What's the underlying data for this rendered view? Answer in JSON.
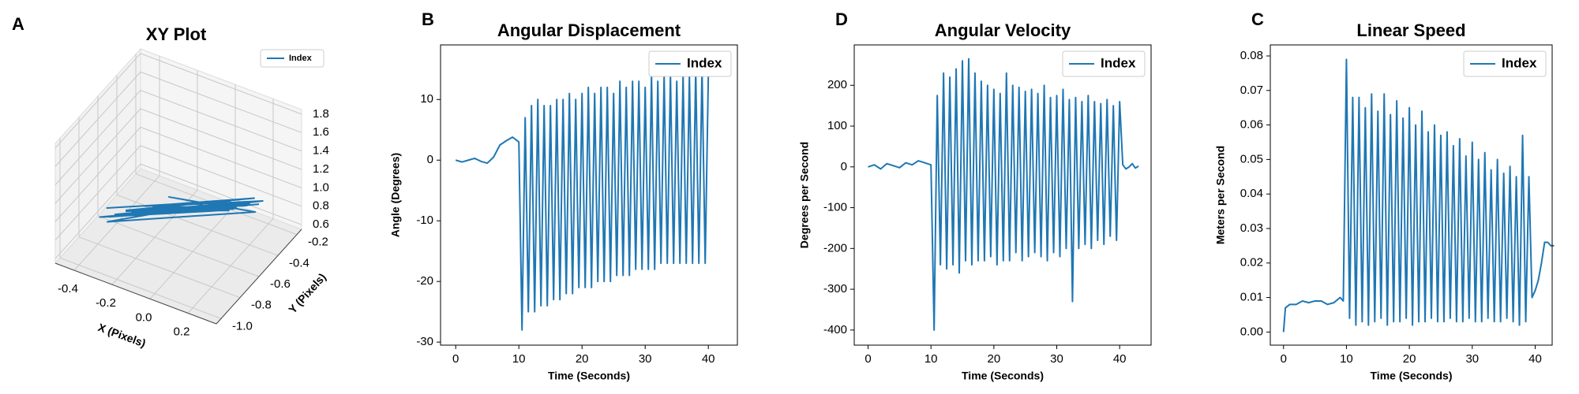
{
  "chart_data": [
    {
      "type": "line3d",
      "panel_label": "A",
      "title": "XY Plot",
      "xlabel": "X (Pixels)",
      "ylabel": "Y (Pixels)",
      "xlim": [
        -0.5,
        0.35
      ],
      "ylim": [
        -1.05,
        -0.15
      ],
      "zlim": [
        0.55,
        1.85
      ],
      "xticks": [
        -0.4,
        -0.2,
        {
          "value": 0,
          "label": "0.0"
        },
        0.2
      ],
      "yticks": [
        {
          "value": -1,
          "label": "-1.0"
        },
        -0.8,
        -0.6,
        -0.4,
        -0.2
      ],
      "zticks": [
        0.6,
        0.8,
        {
          "value": 1,
          "label": "1.0"
        },
        1.2,
        1.4,
        1.6,
        1.8
      ],
      "legend": "upper right",
      "series": [
        {
          "name": "Index",
          "color": "#1f77b4",
          "x": [
            -0.38,
            0.1,
            -0.25,
            0.2,
            -0.3,
            0.05,
            -0.15,
            0.22,
            -0.35,
            0.0,
            -0.1,
            0.18,
            -0.28,
            0.12,
            -0.2,
            0.25,
            -0.05,
            -0.32,
            0.15,
            -0.18,
            0.08,
            -0.4,
            0.2,
            -0.12,
            0.02,
            -0.26,
            0.16,
            -0.08,
            0.23,
            -0.34,
            0.06,
            -0.22,
            0.14,
            -0.02,
            -0.3,
            0.19,
            -0.16,
            0.1,
            -0.36,
            0.24
          ],
          "y": [
            -0.75,
            -0.4,
            -0.6,
            -0.35,
            -0.7,
            -0.45,
            -0.55,
            -0.38,
            -0.8,
            -0.5,
            -0.58,
            -0.42,
            -0.68,
            -0.46,
            -0.62,
            -0.36,
            -0.52,
            -0.72,
            -0.44,
            -0.6,
            -0.48,
            -0.78,
            -0.4,
            -0.56,
            -0.5,
            -0.66,
            -0.42,
            -0.54,
            -0.37,
            -0.74,
            -0.47,
            -0.64,
            -0.45,
            -0.53,
            -0.7,
            -0.41,
            -0.59,
            -0.46,
            -0.76,
            -0.38
          ],
          "z": [
            0.9,
            0.95,
            0.85,
            1.0,
            0.88,
            0.92,
            0.97,
            0.9,
            0.83,
            0.94,
            0.89,
            0.99,
            0.86,
            0.93,
            0.91,
            1.02,
            0.88,
            0.84,
            0.96,
            0.9,
            0.92,
            0.82,
            1.0,
            0.87,
            0.94,
            0.86,
            0.97,
            0.9,
            1.01,
            0.85,
            0.93,
            0.89,
            0.95,
            0.91,
            0.87,
            0.98,
            0.88,
            0.94,
            0.83,
            1.0
          ]
        }
      ]
    },
    {
      "type": "line",
      "panel_label": "B",
      "title": "Angular Displacement",
      "xlabel": "Time (Seconds)",
      "ylabel": "Angle (Degrees)",
      "xlim": [
        -2.4,
        44.6
      ],
      "ylim": [
        -30.5,
        19
      ],
      "xticks": [
        0,
        10,
        20,
        30,
        40
      ],
      "yticks": [
        -30,
        -20,
        -10,
        0,
        10
      ],
      "legend": "upper right",
      "x": [
        0,
        1,
        2,
        3,
        4,
        5,
        6,
        7,
        8,
        9,
        10,
        10.5,
        11,
        11.5,
        12,
        12.5,
        13,
        13.5,
        14,
        14.5,
        15,
        15.5,
        16,
        16.5,
        17,
        17.5,
        18,
        18.5,
        19,
        19.5,
        20,
        20.5,
        21,
        21.5,
        22,
        22.5,
        23,
        23.5,
        24,
        24.5,
        25,
        25.5,
        26,
        26.5,
        27,
        27.5,
        28,
        28.5,
        29,
        29.5,
        30,
        30.5,
        31,
        31.5,
        32,
        32.5,
        33,
        33.5,
        34,
        34.5,
        35,
        35.5,
        36,
        36.5,
        37,
        37.5,
        38,
        38.5,
        39,
        39.5,
        40
      ],
      "series": [
        {
          "name": "Index",
          "color": "#1f77b4",
          "values": [
            0,
            -0.3,
            0,
            0.3,
            -0.2,
            -0.5,
            0.5,
            2.5,
            3.2,
            3.8,
            3.0,
            -28,
            7,
            -25,
            9,
            -25,
            10,
            -24,
            9,
            -24,
            9,
            -23,
            10,
            -23,
            10,
            -22,
            11,
            -22,
            10,
            -21,
            11,
            -21,
            12,
            -21,
            11,
            -20,
            12,
            -20,
            12,
            -20,
            11,
            -19,
            13,
            -19,
            12,
            -19,
            13,
            -18,
            13,
            -18,
            12,
            -18,
            14,
            -18,
            13,
            -17,
            14,
            -17,
            14,
            -17,
            13,
            -17,
            14,
            -17,
            14,
            -17,
            15,
            -17,
            15,
            -17,
            14
          ]
        }
      ]
    },
    {
      "type": "line",
      "panel_label": "D",
      "title": "Angular Velocity",
      "xlabel": "Time (Seconds)",
      "ylabel": "Degrees per Second",
      "xlim": [
        -2.2,
        45
      ],
      "ylim": [
        -437,
        299
      ],
      "xticks": [
        0,
        10,
        20,
        30,
        40
      ],
      "yticks": [
        -400,
        -300,
        -200,
        -100,
        0,
        100,
        200
      ],
      "legend": "upper right",
      "x": [
        0,
        1,
        2,
        3,
        4,
        5,
        6,
        7,
        8,
        9,
        10,
        10.5,
        11,
        11.5,
        12,
        12.5,
        13,
        13.5,
        14,
        14.5,
        15,
        15.5,
        16,
        16.5,
        17,
        17.5,
        18,
        18.5,
        19,
        19.5,
        20,
        20.5,
        21,
        21.5,
        22,
        22.5,
        23,
        23.5,
        24,
        24.5,
        25,
        25.5,
        26,
        26.5,
        27,
        27.5,
        28,
        28.5,
        29,
        29.5,
        30,
        30.5,
        31,
        31.5,
        32,
        32.5,
        33,
        33.5,
        34,
        34.5,
        35,
        35.5,
        36,
        36.5,
        37,
        37.5,
        38,
        38.5,
        39,
        39.5,
        40,
        40.5,
        41,
        41.5,
        42,
        42.5,
        43
      ],
      "series": [
        {
          "name": "Index",
          "color": "#1f77b4",
          "values": [
            0,
            5,
            -5,
            8,
            3,
            -2,
            10,
            5,
            15,
            10,
            5,
            -400,
            175,
            -240,
            230,
            -250,
            220,
            -240,
            240,
            -260,
            260,
            -230,
            265,
            -240,
            230,
            -230,
            210,
            -230,
            200,
            -220,
            190,
            -240,
            180,
            -230,
            230,
            -230,
            200,
            -210,
            195,
            -230,
            185,
            -220,
            190,
            -210,
            180,
            -220,
            200,
            -230,
            170,
            -210,
            175,
            -220,
            190,
            -200,
            165,
            -330,
            170,
            -200,
            160,
            -190,
            175,
            -200,
            160,
            -180,
            155,
            -190,
            165,
            -170,
            150,
            -180,
            160,
            5,
            -5,
            0,
            8,
            -3,
            2
          ]
        }
      ]
    },
    {
      "type": "line",
      "panel_label": "C",
      "title": "Linear Speed",
      "xlabel": "Time (Seconds)",
      "ylabel": "Meters per Second",
      "xlim": [
        -2.1,
        42.7
      ],
      "ylim": [
        -0.0038,
        0.0832
      ],
      "xticks": [
        0,
        10,
        20,
        30,
        40
      ],
      "yticks": [
        {
          "value": 0,
          "label": "0.00"
        },
        0.01,
        0.02,
        0.03,
        0.04,
        0.05,
        0.06,
        0.07,
        0.08
      ],
      "legend": "upper right",
      "x": [
        0,
        0.3,
        1,
        2,
        3,
        4,
        5,
        6,
        7,
        8,
        9,
        9.5,
        10,
        10.5,
        11,
        11.5,
        12,
        12.5,
        13,
        13.5,
        14,
        14.5,
        15,
        15.5,
        16,
        16.5,
        17,
        17.5,
        18,
        18.5,
        19,
        19.5,
        20,
        20.5,
        21,
        21.5,
        22,
        22.5,
        23,
        23.5,
        24,
        24.5,
        25,
        25.5,
        26,
        26.5,
        27,
        27.5,
        28,
        28.5,
        29,
        29.5,
        30,
        30.5,
        31,
        31.5,
        32,
        32.5,
        33,
        33.5,
        34,
        34.5,
        35,
        35.5,
        36,
        36.5,
        37,
        37.5,
        38,
        38.5,
        39,
        39.5,
        40,
        40.5,
        41,
        41.5,
        42,
        42.5,
        43
      ],
      "series": [
        {
          "name": "Index",
          "color": "#1f77b4",
          "values": [
            0,
            0.007,
            0.008,
            0.008,
            0.009,
            0.0085,
            0.009,
            0.009,
            0.008,
            0.0085,
            0.01,
            0.009,
            0.079,
            0.004,
            0.068,
            0.002,
            0.068,
            0.003,
            0.065,
            0.002,
            0.069,
            0.003,
            0.064,
            0.004,
            0.069,
            0.002,
            0.063,
            0.003,
            0.067,
            0.003,
            0.062,
            0.004,
            0.065,
            0.002,
            0.06,
            0.003,
            0.064,
            0.003,
            0.058,
            0.004,
            0.06,
            0.003,
            0.057,
            0.003,
            0.058,
            0.004,
            0.054,
            0.003,
            0.056,
            0.003,
            0.051,
            0.004,
            0.055,
            0.003,
            0.05,
            0.003,
            0.052,
            0.004,
            0.047,
            0.003,
            0.05,
            0.003,
            0.046,
            0.004,
            0.048,
            0.003,
            0.045,
            0.002,
            0.057,
            0.003,
            0.045,
            0.01,
            0.012,
            0.015,
            0.02,
            0.026,
            0.026,
            0.025,
            0.025
          ]
        }
      ]
    }
  ]
}
